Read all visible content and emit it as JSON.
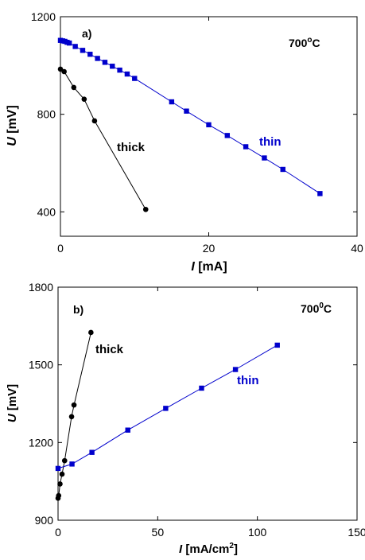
{
  "chart_data": [
    {
      "type": "scatter",
      "panel_label": "a)",
      "temperature": {
        "base": "700",
        "sup": "o",
        "unit": "C"
      },
      "xlabel": {
        "var": "I",
        "unit": " [mA]"
      },
      "ylabel": {
        "var": "U",
        "unit": " [mV]"
      },
      "xlim": [
        0,
        40
      ],
      "ylim": [
        300,
        1200
      ],
      "xticks": [
        0,
        20,
        40
      ],
      "yticks": [
        400,
        800,
        1200
      ],
      "series": [
        {
          "name": "thick",
          "color": "#000000",
          "marker": "circle",
          "x": [
            0.0,
            0.5,
            1.8,
            3.2,
            4.6,
            11.5
          ],
          "y": [
            985,
            975,
            910,
            862,
            773,
            410
          ]
        },
        {
          "name": "thin",
          "color": "#0000cc",
          "marker": "square",
          "x": [
            0.0,
            0.3,
            0.6,
            0.9,
            1.2,
            2.0,
            3.0,
            4.0,
            5.0,
            6.0,
            7.0,
            8.0,
            9.0,
            10.0,
            15.0,
            17.0,
            20.0,
            22.5,
            25.0,
            27.5,
            30.0,
            35.0
          ],
          "y": [
            1103,
            1101,
            1099,
            1095,
            1092,
            1078,
            1062,
            1046,
            1029,
            1013,
            997,
            981,
            965,
            947,
            851,
            813,
            757,
            713,
            667,
            621,
            574,
            475
          ]
        }
      ]
    },
    {
      "type": "scatter",
      "panel_label": "b)",
      "temperature": {
        "base": "700",
        "sup": "0",
        "unit": "C"
      },
      "xlabel": {
        "var": "I",
        "unit": " [mA/cm",
        "sup": "2",
        "tail": "]"
      },
      "ylabel": {
        "var": "U",
        "unit": " [mV]"
      },
      "xlim": [
        0,
        150
      ],
      "ylim": [
        900,
        1800
      ],
      "xticks": [
        0,
        50,
        100,
        150
      ],
      "yticks": [
        900,
        1200,
        1500,
        1800
      ],
      "series": [
        {
          "name": "thick",
          "color": "#000000",
          "marker": "circle",
          "x": [
            0.0,
            0.3,
            1.0,
            2.0,
            3.3,
            6.8,
            8.0,
            16.5
          ],
          "y": [
            985,
            995,
            1040,
            1078,
            1130,
            1300,
            1345,
            1625
          ]
        },
        {
          "name": "thin",
          "color": "#0000cc",
          "marker": "square",
          "x": [
            0.0,
            7.0,
            17.0,
            35.0,
            54.0,
            72.0,
            89.0,
            110.0
          ],
          "y": [
            1100,
            1117,
            1162,
            1248,
            1332,
            1410,
            1482,
            1576
          ]
        }
      ]
    }
  ]
}
